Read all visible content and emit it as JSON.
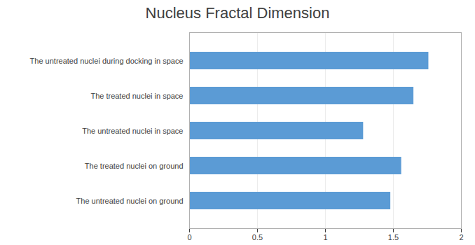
{
  "chart_data": {
    "type": "bar",
    "orientation": "horizontal",
    "title": "Nucleus Fractal Dimension",
    "categories": [
      "The untreated nuclei during docking in space",
      "The treated nuclei in space",
      "The untreated nuclei in space",
      "The treated nuclei on ground",
      "The untreated nuclei on ground"
    ],
    "values": [
      1.76,
      1.65,
      1.28,
      1.56,
      1.48
    ],
    "color": "#5b9bd5",
    "xlim": [
      0,
      2
    ],
    "xticks": [
      0,
      0.5,
      1,
      1.5,
      2
    ],
    "grid": true
  }
}
